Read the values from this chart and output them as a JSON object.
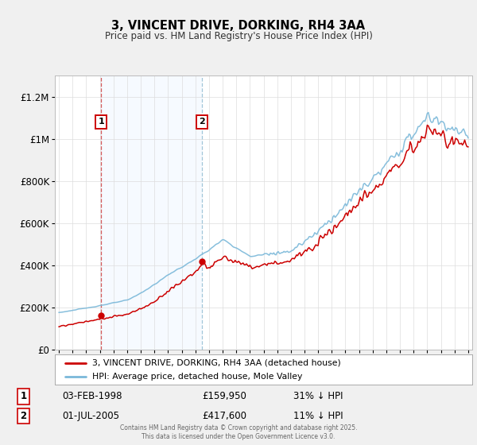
{
  "title": "3, VINCENT DRIVE, DORKING, RH4 3AA",
  "subtitle": "Price paid vs. HM Land Registry's House Price Index (HPI)",
  "ylim": [
    0,
    1300000
  ],
  "yticks": [
    0,
    200000,
    400000,
    600000,
    800000,
    1000000,
    1200000
  ],
  "ytick_labels": [
    "£0",
    "£200K",
    "£400K",
    "£600K",
    "£800K",
    "£1M",
    "£1.2M"
  ],
  "hpi_color": "#7ab8d9",
  "price_color": "#cc0000",
  "shade_color": "#ddeeff",
  "legend_label_price": "3, VINCENT DRIVE, DORKING, RH4 3AA (detached house)",
  "legend_label_hpi": "HPI: Average price, detached house, Mole Valley",
  "purchase1_year": 1998.09,
  "purchase1_value": 159950,
  "purchase2_year": 2005.5,
  "purchase2_value": 417600,
  "purchase1_date": "03-FEB-1998",
  "purchase1_price": "£159,950",
  "purchase1_hpi": "31% ↓ HPI",
  "purchase2_date": "01-JUL-2005",
  "purchase2_price": "£417,600",
  "purchase2_hpi": "11% ↓ HPI",
  "footer": "Contains HM Land Registry data © Crown copyright and database right 2025.\nThis data is licensed under the Open Government Licence v3.0.",
  "background_color": "#f0f0f0"
}
